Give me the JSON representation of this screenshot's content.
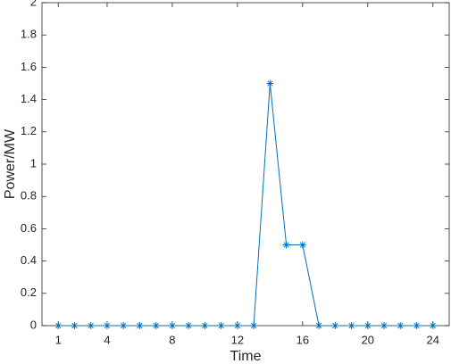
{
  "chart_data": {
    "type": "line",
    "xlabel": "Time",
    "ylabel": "Power/MW",
    "x": [
      1,
      2,
      3,
      4,
      5,
      6,
      7,
      8,
      9,
      10,
      11,
      12,
      13,
      14,
      15,
      16,
      17,
      18,
      19,
      20,
      21,
      22,
      23,
      24
    ],
    "series": [
      {
        "color": "#0072bd",
        "values": [
          0,
          0,
          0,
          0,
          0,
          0,
          0,
          0,
          0,
          0,
          0,
          0,
          0,
          1.5,
          0.5,
          0.5,
          0,
          0,
          0,
          0,
          0,
          0,
          0,
          0
        ]
      }
    ],
    "xlim": [
      0,
      25
    ],
    "xticks": [
      1,
      4,
      8,
      12,
      16,
      20,
      24
    ],
    "ylim": [
      0,
      2
    ],
    "yticks": [
      0,
      0.2,
      0.4,
      0.6,
      0.8,
      1,
      1.2,
      1.4,
      1.6,
      1.8,
      2
    ],
    "marker": "asterisk"
  }
}
